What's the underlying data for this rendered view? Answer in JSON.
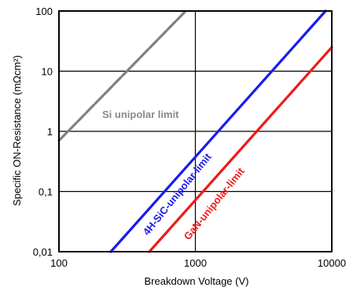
{
  "chart_data": {
    "type": "line",
    "xlabel": "Breakdown Voltage (V)",
    "ylabel": "Specific ON-Resistance (mΩcm²)",
    "x_scale": "log",
    "y_scale": "log",
    "xlim": [
      100,
      10000
    ],
    "ylim": [
      0.01,
      100
    ],
    "x_ticks": [
      {
        "value": 100,
        "label": "100"
      },
      {
        "value": 1000,
        "label": "1000"
      },
      {
        "value": 10000,
        "label": "10000"
      }
    ],
    "y_ticks": [
      {
        "value": 0.01,
        "label": "0,01"
      },
      {
        "value": 0.1,
        "label": "0,1"
      },
      {
        "value": 1,
        "label": "1"
      },
      {
        "value": 10,
        "label": "10"
      },
      {
        "value": 100,
        "label": "100"
      }
    ],
    "grid": true,
    "series": [
      {
        "name": "Si unipolar limit",
        "color": "#808080",
        "dashed": true,
        "x": [
          100,
          850
        ],
        "y": [
          0.7,
          100
        ]
      },
      {
        "name": "4H-SiC-unipolar-limit",
        "color": "#1a1aee",
        "dashed": false,
        "x": [
          240,
          9000
        ],
        "y": [
          0.01,
          100
        ]
      },
      {
        "name": "GaN-unipolar-limit",
        "color": "#ee1a1a",
        "dashed": false,
        "x": [
          460,
          10000
        ],
        "y": [
          0.01,
          25
        ]
      }
    ]
  }
}
